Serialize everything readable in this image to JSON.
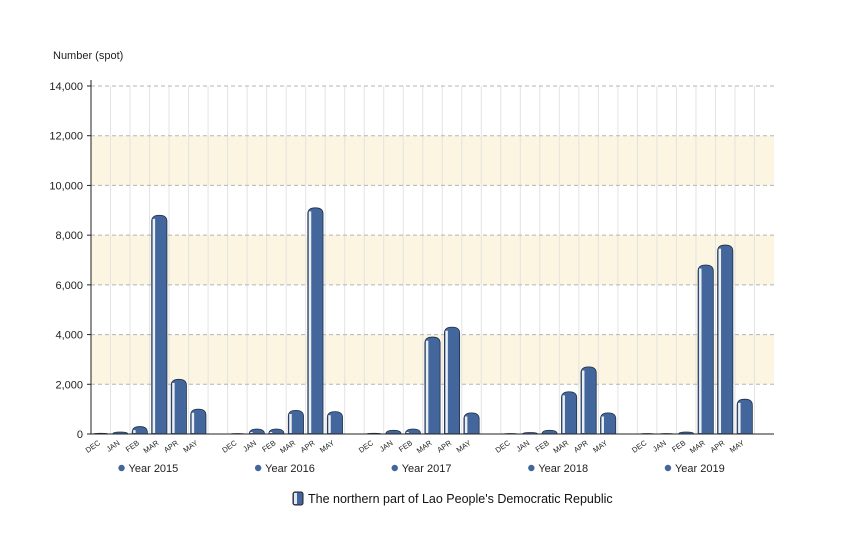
{
  "chart_data": {
    "type": "bar",
    "ylabel": "Number (spot)",
    "ylim": [
      0,
      14000
    ],
    "yticks": [
      0,
      2000,
      4000,
      6000,
      8000,
      10000,
      12000,
      14000
    ],
    "ytick_labels": [
      "0",
      "2,000",
      "4,000",
      "6,000",
      "8,000",
      "10,000",
      "12,000",
      "14,000"
    ],
    "grid": true,
    "months": [
      "DEC",
      "JAN",
      "FEB",
      "MAR",
      "APR",
      "MAY"
    ],
    "groups": [
      {
        "name": "Year 2015",
        "values": [
          30,
          80,
          300,
          8800,
          2200,
          1000
        ]
      },
      {
        "name": "Year 2016",
        "values": [
          20,
          200,
          200,
          950,
          9100,
          900
        ]
      },
      {
        "name": "Year 2017",
        "values": [
          30,
          150,
          200,
          3900,
          4300,
          850
        ]
      },
      {
        "name": "Year 2018",
        "values": [
          20,
          60,
          150,
          1700,
          2700,
          850
        ]
      },
      {
        "name": "Year 2019",
        "values": [
          20,
          20,
          80,
          6800,
          7600,
          1400
        ]
      }
    ],
    "legend": {
      "label": "The northern part of Lao People's Democratic Republic",
      "position": "bottom"
    },
    "colors": {
      "bar": "#43679c",
      "bar_dark": "#2d4a74",
      "band": "#fbf5e2",
      "grid": "#c8c8c8",
      "axis": "#222222"
    }
  }
}
